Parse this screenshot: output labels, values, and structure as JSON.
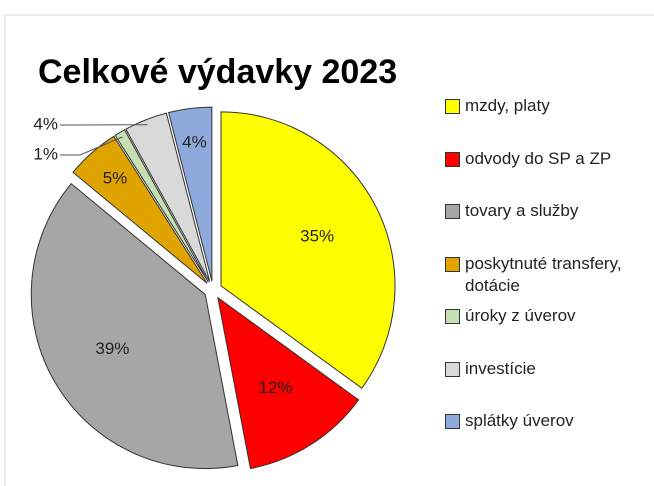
{
  "chart_data": {
    "type": "pie",
    "title": "Celkové výdavky 2023",
    "categories": [
      "mzdy, platy",
      "odvody do SP a ZP",
      "tovary a služby",
      "poskytnuté transfery, dotácie",
      "úroky z úverov",
      "investície",
      "splátky úverov"
    ],
    "values": [
      35,
      12,
      39,
      5,
      1,
      4,
      4
    ],
    "value_labels": [
      "35%",
      "12%",
      "39%",
      "5%",
      "1%",
      "4%",
      "4%"
    ],
    "colors": [
      "#ffff00",
      "#ff0000",
      "#a6a6a6",
      "#e0a400",
      "#c6e0b4",
      "#d9d9d9",
      "#8ea9db"
    ],
    "legend": "right"
  }
}
